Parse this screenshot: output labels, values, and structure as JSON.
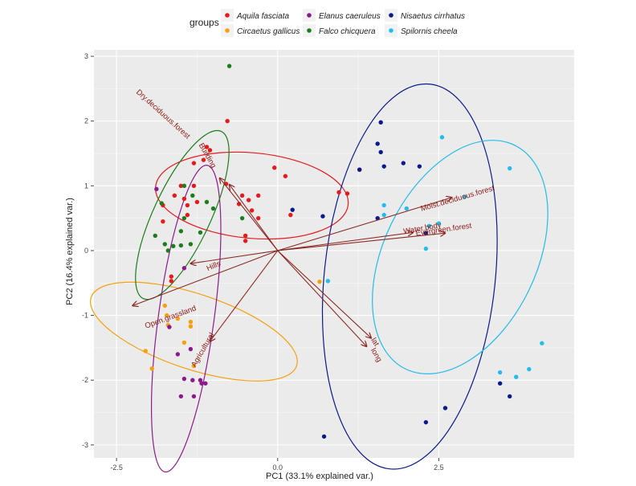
{
  "chart_data": {
    "type": "scatter",
    "xlabel": "PC1 (33.1% explained var.)",
    "ylabel": "PC2 (16.4% explained var.)",
    "xlim": [
      -2.85,
      4.6
    ],
    "ylim": [
      -3.2,
      3.1
    ],
    "x_ticks": [
      -2.5,
      0.0,
      2.5
    ],
    "x_tick_labels": [
      "-2.5",
      "0.0",
      "2.5"
    ],
    "y_ticks": [
      3,
      2,
      1,
      0,
      -1,
      -2,
      -3
    ],
    "y_tick_labels": [
      "3",
      "2",
      "1",
      "0",
      "-1",
      "-2",
      "-3"
    ],
    "grid": true,
    "legend": {
      "title": "groups",
      "position": "top"
    },
    "series": [
      {
        "name": "Aquila fasciata",
        "color": "#e41a1c",
        "points": [
          [
            -0.78,
            2.0
          ],
          [
            -1.1,
            1.6
          ],
          [
            -1.3,
            1.35
          ],
          [
            -1.15,
            1.4
          ],
          [
            -1.05,
            1.55
          ],
          [
            -1.5,
            1.0
          ],
          [
            -1.3,
            1.0
          ],
          [
            -1.6,
            0.85
          ],
          [
            -1.45,
            0.8
          ],
          [
            -1.4,
            0.7
          ],
          [
            -1.25,
            0.75
          ],
          [
            -1.4,
            0.55
          ],
          [
            -1.78,
            0.7
          ],
          [
            -1.78,
            0.45
          ],
          [
            -0.8,
            1.03
          ],
          [
            -0.55,
            0.85
          ],
          [
            -0.3,
            0.85
          ],
          [
            -0.45,
            0.78
          ],
          [
            -0.6,
            0.72
          ],
          [
            -0.4,
            0.62
          ],
          [
            -0.3,
            0.5
          ],
          [
            -0.05,
            1.28
          ],
          [
            0.12,
            1.15
          ],
          [
            0.2,
            0.55
          ],
          [
            -0.5,
            0.15
          ],
          [
            -0.5,
            0.23
          ],
          [
            -1.65,
            -0.4
          ],
          [
            -1.65,
            -0.47
          ],
          [
            0.95,
            0.9
          ],
          [
            1.08,
            0.88
          ],
          [
            1.27,
            1.25
          ]
        ]
      },
      {
        "name": "Circaetus gallicus",
        "color": "#f5a00c",
        "points": [
          [
            -1.75,
            -0.85
          ],
          [
            -1.72,
            -1.0
          ],
          [
            -1.7,
            -1.15
          ],
          [
            -1.55,
            -1.05
          ],
          [
            -1.35,
            -1.1
          ],
          [
            -1.35,
            -1.17
          ],
          [
            -1.45,
            -1.42
          ],
          [
            -1.3,
            -1.78
          ],
          [
            -2.05,
            -1.55
          ],
          [
            -1.95,
            -1.82
          ],
          [
            0.65,
            -0.48
          ]
        ]
      },
      {
        "name": "Elanus caeruleus",
        "color": "#8b1a8b",
        "points": [
          [
            -1.88,
            0.95
          ],
          [
            -1.45,
            -0.27
          ],
          [
            -1.68,
            -1.18
          ],
          [
            -1.35,
            -1.52
          ],
          [
            -1.55,
            -1.6
          ],
          [
            -1.45,
            -1.98
          ],
          [
            -1.32,
            -2.0
          ],
          [
            -1.5,
            -2.25
          ],
          [
            -1.2,
            -2.0
          ],
          [
            -1.18,
            -2.05
          ],
          [
            -1.3,
            -2.25
          ],
          [
            -1.12,
            -2.05
          ]
        ]
      },
      {
        "name": "Falco chicquera",
        "color": "#1b7d1b",
        "points": [
          [
            -0.75,
            2.85
          ],
          [
            -1.45,
            1.0
          ],
          [
            -1.8,
            0.73
          ],
          [
            -1.32,
            0.85
          ],
          [
            -1.1,
            0.75
          ],
          [
            -1.0,
            0.65
          ],
          [
            -1.45,
            0.5
          ],
          [
            -1.5,
            0.3
          ],
          [
            -1.9,
            0.23
          ],
          [
            -1.75,
            0.1
          ],
          [
            -1.5,
            0.08
          ],
          [
            -1.62,
            0.07
          ],
          [
            -1.7,
            0.0
          ],
          [
            -1.35,
            0.1
          ],
          [
            -1.2,
            0.28
          ],
          [
            -0.55,
            0.5
          ]
        ]
      },
      {
        "name": "Nisaetus cirrhatus",
        "color": "#0a1a8c",
        "points": [
          [
            1.6,
            1.98
          ],
          [
            1.55,
            1.65
          ],
          [
            1.6,
            1.52
          ],
          [
            1.65,
            1.3
          ],
          [
            1.95,
            1.35
          ],
          [
            2.2,
            1.3
          ],
          [
            1.27,
            1.25
          ],
          [
            0.23,
            0.63
          ],
          [
            0.7,
            0.53
          ],
          [
            1.55,
            0.5
          ],
          [
            2.3,
            0.27
          ],
          [
            3.45,
            -2.05
          ],
          [
            3.6,
            -2.25
          ],
          [
            2.6,
            -2.43
          ],
          [
            2.3,
            -2.65
          ],
          [
            0.72,
            -2.87
          ]
        ]
      },
      {
        "name": "Spilornis cheela",
        "color": "#24bcea",
        "points": [
          [
            2.55,
            1.75
          ],
          [
            3.6,
            1.27
          ],
          [
            2.9,
            0.83
          ],
          [
            1.65,
            0.7
          ],
          [
            2.0,
            0.65
          ],
          [
            1.65,
            0.55
          ],
          [
            2.35,
            0.38
          ],
          [
            2.5,
            0.42
          ],
          [
            2.3,
            0.03
          ],
          [
            0.78,
            -0.47
          ],
          [
            3.45,
            -1.88
          ],
          [
            4.1,
            -1.43
          ],
          [
            3.9,
            -1.83
          ],
          [
            3.7,
            -1.95
          ]
        ]
      }
    ],
    "ellipses": [
      {
        "group": "Aquila fasciata",
        "color": "#e41a1c",
        "cx": -0.4,
        "cy": 0.85,
        "rx": 1.5,
        "ry": 0.66,
        "rotate": 5.2
      },
      {
        "group": "Circaetus gallicus",
        "color": "#f5a00c",
        "cx": -1.3,
        "cy": -1.25,
        "rx": 1.68,
        "ry": 0.58,
        "rotate": 18.4
      },
      {
        "group": "Elanus caeruleus",
        "color": "#8b1a8b",
        "cx": -1.42,
        "cy": -1.05,
        "rx": 2.4,
        "ry": 0.43,
        "rotate": -82.2
      },
      {
        "group": "Falco chicquera",
        "color": "#1b7d1b",
        "cx": -1.48,
        "cy": 0.55,
        "rx": 1.43,
        "ry": 0.44,
        "rotate": -65.0
      },
      {
        "group": "Nisaetus cirrhatus",
        "color": "#0a1a8c",
        "cx": 2.05,
        "cy": -0.4,
        "rx": 3.0,
        "ry": 1.32,
        "rotate": -84.0
      },
      {
        "group": "Spilornis cheela",
        "color": "#24bcea",
        "cx": 2.83,
        "cy": -0.1,
        "rx": 1.93,
        "ry": 1.18,
        "rotate": -64.0
      }
    ],
    "vectors": [
      {
        "label": "Dry.deciduous.forest",
        "x": -0.75,
        "y": 1.02,
        "lx": -1.8,
        "ly": 2.08,
        "angle": 42
      },
      {
        "label": "Building",
        "x": -0.9,
        "y": 1.12,
        "lx": -1.12,
        "ly": 1.45,
        "angle": 60
      },
      {
        "label": "Moist.deciduous.forest",
        "x": 2.7,
        "y": 0.82,
        "lx": 2.8,
        "ly": 0.77,
        "angle": -16
      },
      {
        "label": "Water.body",
        "x": 2.1,
        "y": 0.28,
        "lx": 2.25,
        "ly": 0.31,
        "angle": -10
      },
      {
        "label": "Evergreen.forest",
        "x": 2.6,
        "y": 0.27,
        "lx": 2.58,
        "ly": 0.29,
        "angle": -8
      },
      {
        "label": "Hills",
        "x": -1.35,
        "y": -0.2,
        "lx": -0.98,
        "ly": -0.27,
        "angle": -24
      },
      {
        "label": "Open.grassland",
        "x": -2.25,
        "y": -0.85,
        "lx": -1.65,
        "ly": -1.06,
        "angle": -20
      },
      {
        "label": "Agricultural",
        "x": -1.05,
        "y": -1.4,
        "lx": -1.13,
        "ly": -1.55,
        "angle": -60
      },
      {
        "label": "lat",
        "x": 1.45,
        "y": -1.35,
        "lx": 1.48,
        "ly": -1.43,
        "angle": 58
      },
      {
        "label": "long",
        "x": 1.38,
        "y": -1.48,
        "lx": 1.5,
        "ly": -1.63,
        "angle": 60
      }
    ]
  }
}
